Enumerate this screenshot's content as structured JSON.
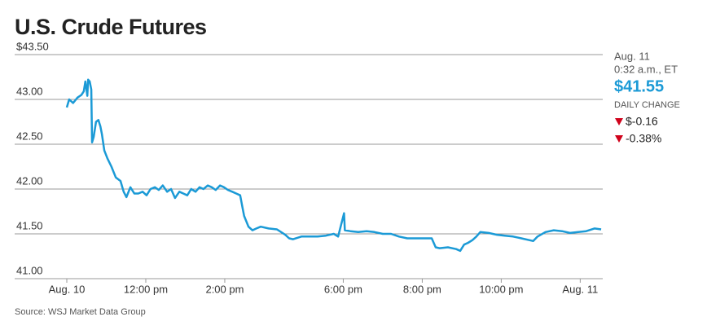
{
  "chart_data": {
    "type": "line",
    "title": "U.S. Crude Futures",
    "source": "Source: WSJ Market Data Group",
    "quote": {
      "date": "Aug. 11",
      "time": "0:32 a.m., ET",
      "price": "$41.55",
      "change_label": "DAILY CHANGE",
      "change": "$-0.16",
      "change_pct": "-0.38%"
    },
    "x": [
      10.0,
      10.06,
      10.16,
      10.27,
      10.37,
      10.43,
      10.47,
      10.52,
      10.54,
      10.58,
      10.62,
      10.64,
      10.68,
      10.74,
      10.8,
      10.85,
      10.89,
      10.95,
      11.03,
      11.13,
      11.24,
      11.36,
      11.44,
      11.51,
      11.61,
      11.71,
      11.81,
      11.92,
      12.02,
      12.12,
      12.23,
      12.33,
      12.43,
      12.54,
      12.64,
      12.74,
      12.85,
      12.95,
      13.05,
      13.15,
      13.26,
      13.36,
      13.46,
      13.57,
      13.67,
      13.77,
      13.88,
      13.98,
      14.08,
      14.19,
      14.29,
      14.39,
      14.45,
      14.49,
      14.6,
      14.7,
      14.8,
      14.91,
      15.11,
      15.32,
      15.53,
      15.63,
      15.73,
      15.94,
      16.14,
      16.35,
      16.56,
      16.76,
      16.87,
      18.02,
      18.04,
      18.18,
      18.38,
      18.59,
      18.79,
      19.0,
      19.21,
      19.41,
      19.62,
      19.82,
      20.03,
      20.24,
      20.34,
      20.44,
      20.65,
      20.86,
      20.96,
      21.06,
      21.16,
      21.27,
      21.37,
      21.47,
      21.68,
      21.89,
      22.09,
      22.3,
      22.51,
      22.71,
      22.81,
      22.92,
      23.12,
      23.33,
      23.54,
      23.74,
      23.95,
      24.15,
      24.36,
      24.53
    ],
    "series": [
      {
        "name": "U.S. Crude Futures",
        "color": "#1b9ad6",
        "values": [
          42.91,
          43.0,
          42.96,
          43.02,
          43.05,
          43.09,
          43.2,
          43.04,
          43.22,
          43.2,
          43.11,
          42.52,
          42.58,
          42.75,
          42.77,
          42.7,
          42.61,
          42.43,
          42.34,
          42.25,
          42.13,
          42.09,
          41.97,
          41.91,
          42.02,
          41.95,
          41.95,
          41.97,
          41.93,
          42.0,
          42.02,
          41.99,
          42.04,
          41.97,
          42.0,
          41.9,
          41.97,
          41.95,
          41.93,
          42.0,
          41.97,
          42.02,
          42.0,
          42.04,
          42.02,
          41.99,
          42.04,
          42.02,
          41.99,
          41.97,
          41.95,
          41.93,
          41.79,
          41.7,
          41.58,
          41.54,
          41.56,
          41.58,
          41.56,
          41.55,
          41.49,
          41.45,
          41.44,
          41.47,
          41.47,
          41.47,
          41.48,
          41.5,
          41.47,
          41.73,
          41.54,
          41.53,
          41.52,
          41.53,
          41.52,
          41.5,
          41.5,
          41.47,
          41.45,
          41.45,
          41.45,
          41.45,
          41.35,
          41.34,
          41.35,
          41.33,
          41.31,
          41.38,
          41.4,
          41.43,
          41.47,
          41.52,
          41.51,
          41.49,
          41.48,
          41.47,
          41.45,
          41.43,
          41.42,
          41.47,
          41.52,
          41.54,
          41.53,
          41.51,
          41.52,
          41.53,
          41.56,
          41.55
        ]
      }
    ],
    "xlim": [
      8.68,
      24.57
    ],
    "xbreak": [
      17,
      18
    ],
    "xticks": [
      {
        "value": 10,
        "label": "Aug. 10"
      },
      {
        "value": 12,
        "label": "12:00 pm"
      },
      {
        "value": 14,
        "label": "2:00 pm"
      },
      {
        "value": 18,
        "label": "6:00 pm"
      },
      {
        "value": 20,
        "label": "8:00 pm"
      },
      {
        "value": 22,
        "label": "10:00 pm"
      },
      {
        "value": 24,
        "label": "Aug. 11"
      }
    ],
    "ylim": [
      41,
      43.5
    ],
    "yticks": [
      {
        "value": 43.5,
        "label": "$43.50"
      },
      {
        "value": 43,
        "label": "43.00"
      },
      {
        "value": 42.5,
        "label": "42.50"
      },
      {
        "value": 42,
        "label": "42.00"
      },
      {
        "value": 41.5,
        "label": "41.50"
      },
      {
        "value": 41,
        "label": "41.00"
      }
    ],
    "grid": true
  }
}
